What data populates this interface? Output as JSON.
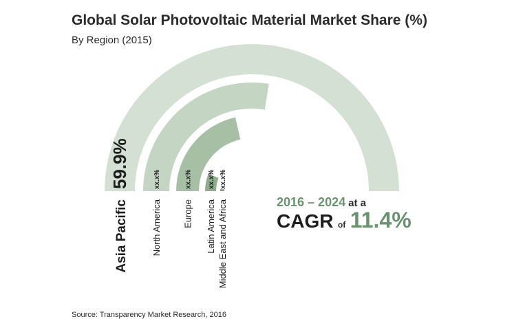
{
  "header": {
    "title": "Global Solar Photovoltaic Material Market Share (%)",
    "subtitle": "By Region (2015)"
  },
  "chart_data": {
    "type": "radial-bar",
    "title": "Global Solar Photovoltaic Material Market Share (%)",
    "subtitle": "By Region (2015)",
    "categories": [
      "Asia Pacific",
      "North America",
      "Europe",
      "Latin America",
      "Middle East and Africa"
    ],
    "value_labels": [
      "59.9%",
      "xx.x%",
      "xx.x%",
      "xx.x%",
      "xx.x%"
    ],
    "values": [
      59.9,
      null,
      null,
      null,
      null
    ],
    "relative_arc_extent": [
      1.0,
      0.55,
      0.43,
      0.12,
      0.02
    ],
    "colors": [
      "#d4e0d3",
      "#c4d6c3",
      "#a7c0a5",
      "#8fad8d",
      "#7d9f7b"
    ]
  },
  "cagr": {
    "years": "2016 – 2024",
    "at_a": "at a",
    "label": "CAGR",
    "of": "of",
    "value": "11.4%"
  },
  "source": "Source: Transparency Market Research, 2016"
}
